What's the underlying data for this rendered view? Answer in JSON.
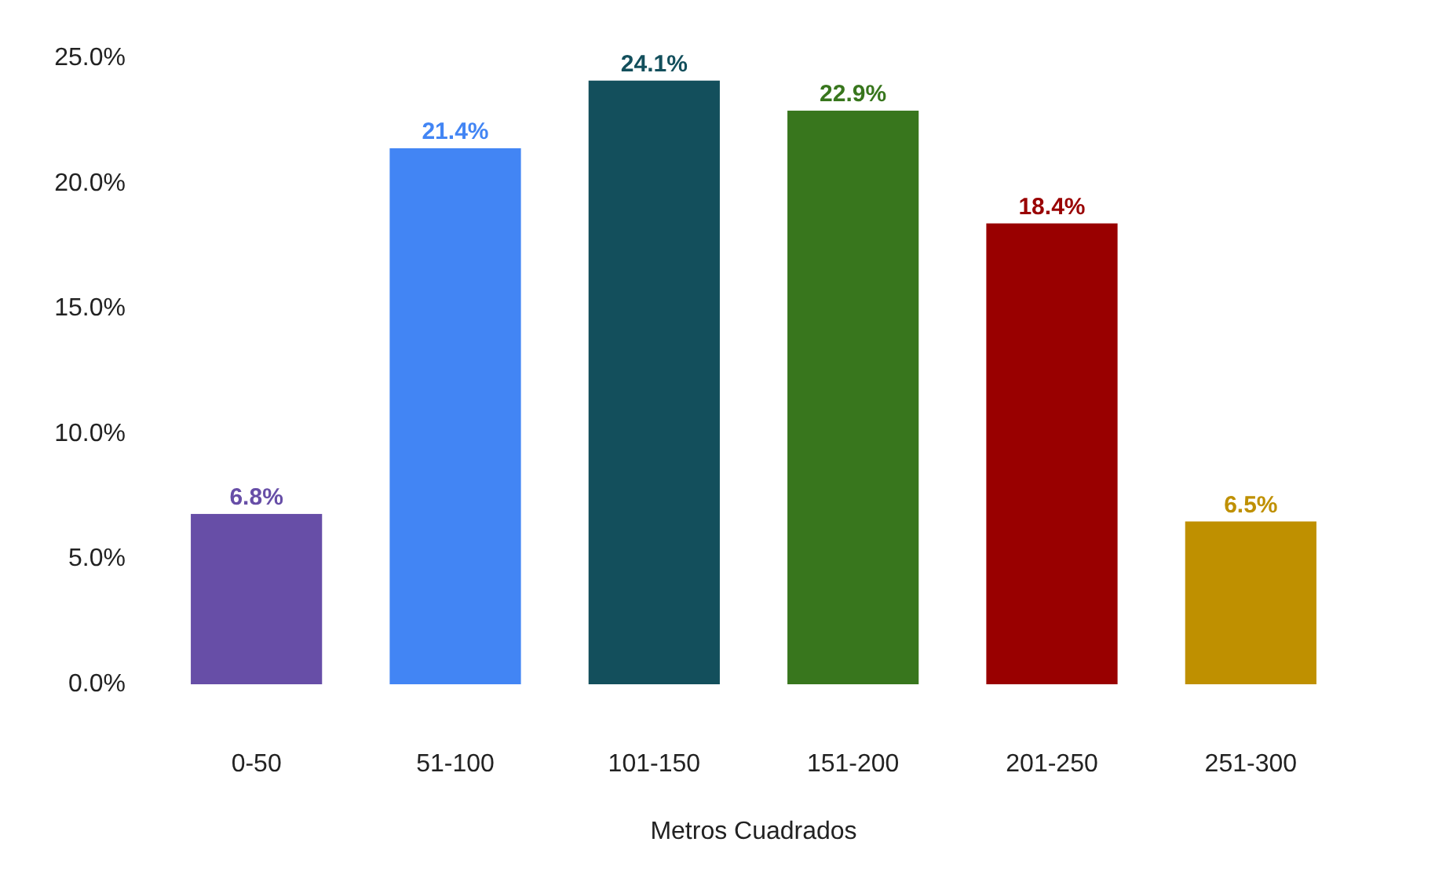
{
  "chart_data": {
    "type": "bar",
    "xlabel": "Metros Cuadrados",
    "categories": [
      "0-50",
      "51-100",
      "101-150",
      "151-200",
      "201-250",
      "251-300"
    ],
    "values": [
      6.8,
      21.4,
      24.1,
      22.9,
      18.4,
      6.5
    ],
    "colors": [
      "#674ea7",
      "#4285f4",
      "#134f5c",
      "#38761d",
      "#990000",
      "#bf9000"
    ],
    "value_labels": [
      "6.8%",
      "21.4%",
      "24.1%",
      "22.9%",
      "18.4%",
      "6.5%"
    ],
    "ylim": [
      0,
      25
    ],
    "yticks": [
      {
        "value": 0,
        "label": "0.0%"
      },
      {
        "value": 5,
        "label": "5.0%"
      },
      {
        "value": 10,
        "label": "10.0%"
      },
      {
        "value": 15,
        "label": "15.0%"
      },
      {
        "value": 20,
        "label": "20.0%"
      },
      {
        "value": 25,
        "label": "25.0%"
      }
    ]
  }
}
